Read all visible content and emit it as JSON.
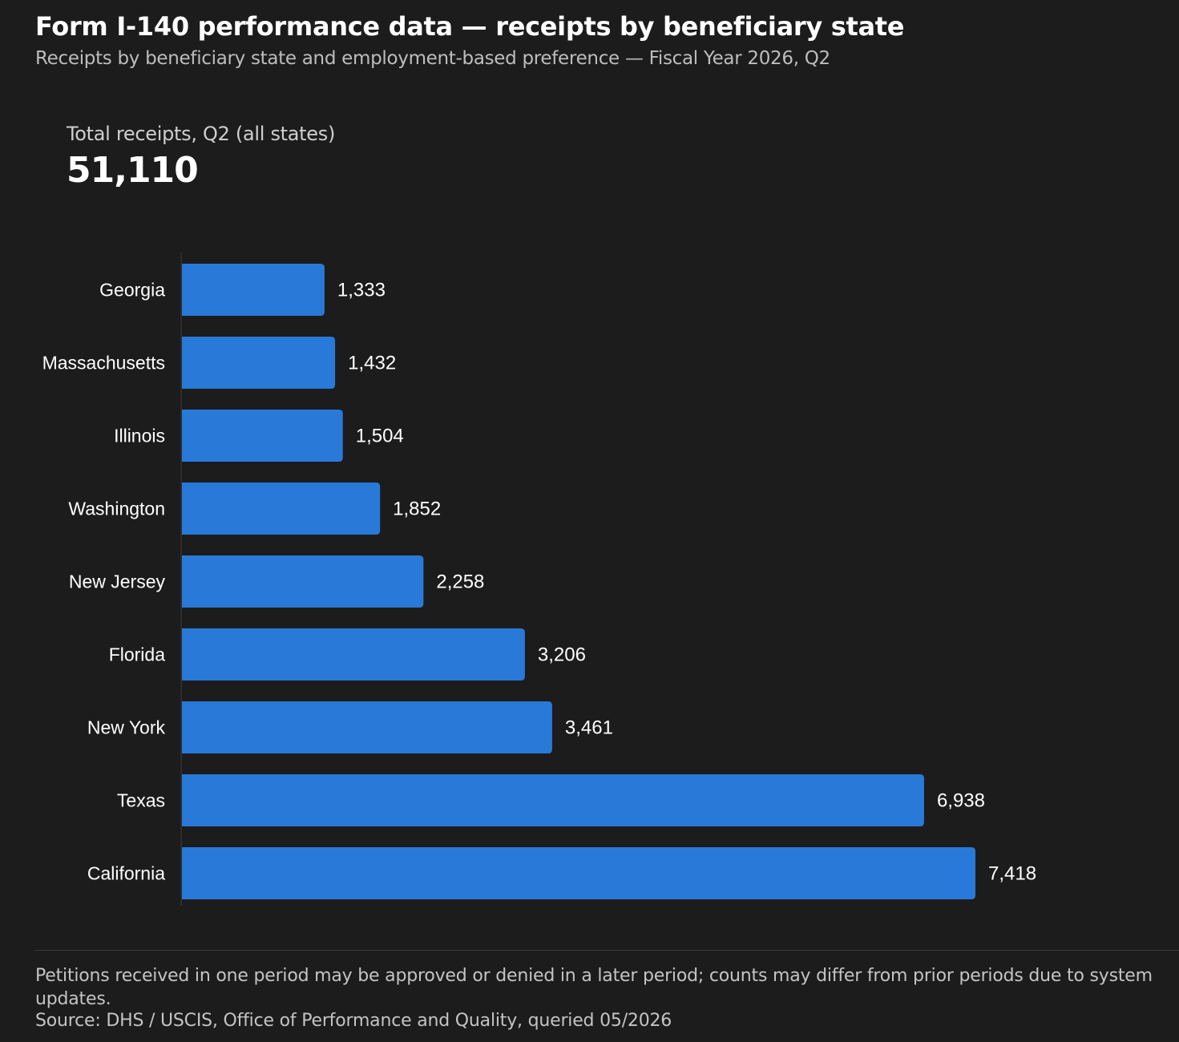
{
  "header": {
    "title": "Form I-140 performance data — receipts by beneficiary state",
    "subtitle": "Receipts by beneficiary state and employment-based preference — Fiscal Year 2026, Q2"
  },
  "kpi": {
    "label": "Total receipts, Q2 (all states)",
    "value": "51,110"
  },
  "footer": {
    "note": "Petitions received in one period may be approved or denied in a later period; counts may differ from prior periods due to system updates.",
    "source": "Source: DHS / USCIS, Office of Performance and Quality, queried 05/2026"
  },
  "colors": {
    "background": "#1c1c1c",
    "bar": "#2979d9",
    "axis": "#2c2c2c",
    "label": "#ffffff"
  },
  "chart_data": {
    "type": "bar",
    "orientation": "horizontal",
    "categories": [
      "Georgia",
      "Massachusetts",
      "Illinois",
      "Washington",
      "New Jersey",
      "Florida",
      "New York",
      "Texas",
      "California"
    ],
    "values": [
      1333,
      1432,
      1504,
      1852,
      2258,
      3206,
      3461,
      6938,
      7418
    ],
    "value_labels": [
      "1,333",
      "1,432",
      "1,504",
      "1,852",
      "2,258",
      "3,206",
      "3,461",
      "6,938",
      "7,418"
    ],
    "xlim": [
      0,
      7418
    ],
    "grid": false,
    "legend": "none"
  }
}
